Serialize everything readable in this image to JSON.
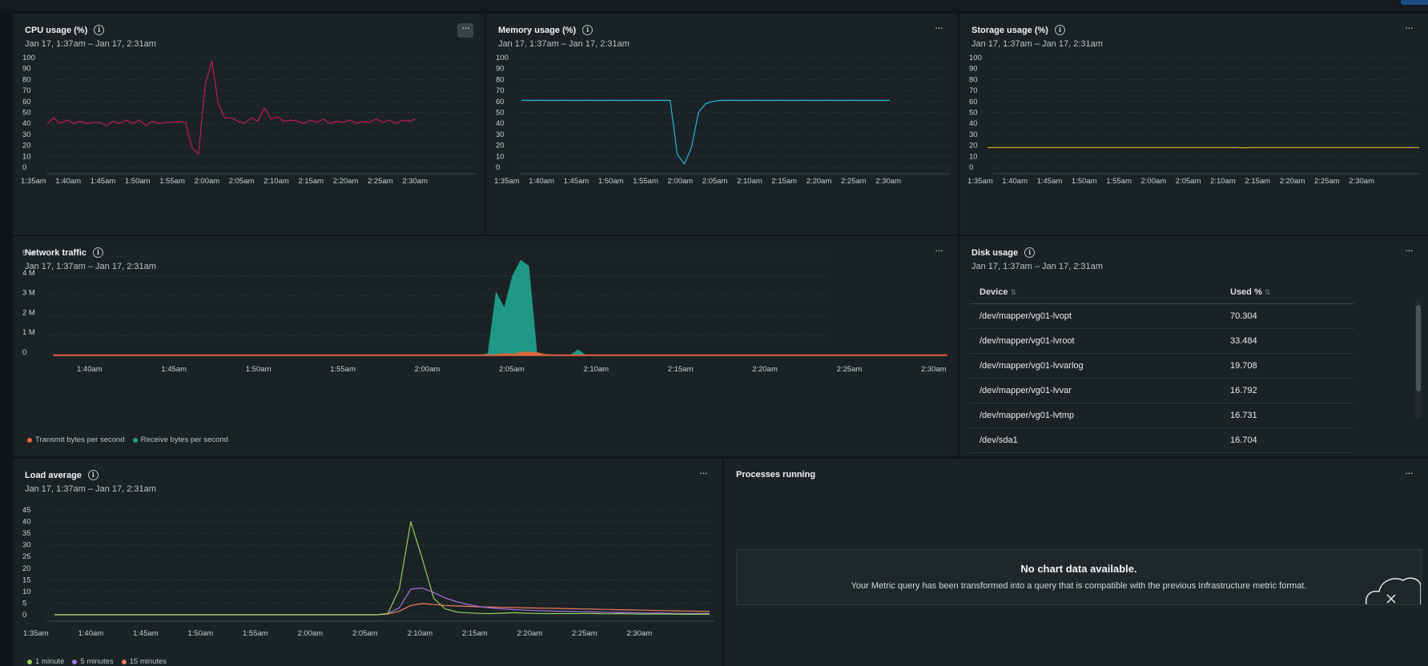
{
  "time_range": "Jan 17, 1:37am – Jan 17, 2:31am",
  "menu_label": "···",
  "colors": {
    "cpu": "#c2185b",
    "memory": "#1fb8d1",
    "storage": "#e0b421",
    "transmit": "#e8643c",
    "receive": "#20a08a",
    "load_1m": "#8fd05c",
    "load_5m": "#a673e0",
    "load_15m": "#ee7e5e"
  },
  "cpu_panel": {
    "title": "CPU usage (%)"
  },
  "memory_panel": {
    "title": "Memory usage (%)"
  },
  "storage_panel": {
    "title": "Storage usage (%)"
  },
  "network_panel": {
    "title": "Network traffic"
  },
  "disk_panel": {
    "title": "Disk usage",
    "col_device": "Device",
    "col_used": "Used %",
    "rows": [
      {
        "device": "/dev/mapper/vg01-lvopt",
        "used": "70.304"
      },
      {
        "device": "/dev/mapper/vg01-lvroot",
        "used": "33.484"
      },
      {
        "device": "/dev/mapper/vg01-lvvarlog",
        "used": "19.708"
      },
      {
        "device": "/dev/mapper/vg01-lvvar",
        "used": "16.792"
      },
      {
        "device": "/dev/mapper/vg01-lvtmp",
        "used": "16.731"
      },
      {
        "device": "/dev/sda1",
        "used": "16.704"
      }
    ]
  },
  "load_panel": {
    "title": "Load average"
  },
  "processes_panel": {
    "title": "Processes running",
    "no_data_title": "No chart data available.",
    "no_data_message": "Your Metric query has been transformed into a query that is compatible with the previous Infrastructure metric format."
  },
  "chart_data": [
    {
      "id": "cpu",
      "type": "line",
      "title": "CPU usage (%)",
      "ylim": [
        0,
        100
      ],
      "yticks": [
        "100",
        "90",
        "80",
        "70",
        "60",
        "50",
        "40",
        "30",
        "20",
        "10",
        "0"
      ],
      "xticks": [
        "1:35am",
        "1:40am",
        "1:45am",
        "1:50am",
        "1:55am",
        "2:00am",
        "2:05am",
        "2:10am",
        "2:15am",
        "2:20am",
        "2:25am",
        "2:30am"
      ],
      "series": [
        {
          "values": [
            40,
            45,
            40,
            43,
            40,
            42,
            40,
            41,
            41,
            38,
            42,
            40,
            43,
            40,
            43,
            38,
            42,
            40,
            41,
            41,
            42,
            41,
            18,
            12,
            75,
            97,
            58,
            45,
            45,
            42,
            40,
            45,
            42,
            54,
            44,
            46,
            42,
            43,
            42,
            40,
            43,
            41,
            44,
            40,
            42,
            41,
            43,
            40,
            42,
            41,
            44,
            41,
            43,
            40,
            43,
            42,
            44
          ]
        }
      ]
    },
    {
      "id": "memory",
      "type": "line",
      "title": "Memory usage (%)",
      "ylim": [
        0,
        100
      ],
      "yticks": [
        "100",
        "90",
        "80",
        "70",
        "60",
        "50",
        "40",
        "30",
        "20",
        "10",
        "0"
      ],
      "xticks": [
        "1:35am",
        "1:40am",
        "1:45am",
        "1:50am",
        "1:55am",
        "2:00am",
        "2:05am",
        "2:10am",
        "2:15am",
        "2:20am",
        "2:25am",
        "2:30am"
      ],
      "series": [
        {
          "values": [
            61,
            61,
            61,
            61,
            61,
            61,
            61,
            61,
            61,
            61,
            61,
            61,
            61,
            61,
            61,
            61,
            61,
            61,
            61,
            61,
            61,
            61,
            12,
            3,
            18,
            50,
            58,
            60,
            61,
            61,
            61,
            61,
            61,
            61,
            61,
            61,
            61,
            61,
            61,
            61,
            61,
            61,
            61,
            61,
            61,
            61,
            61,
            61,
            61,
            61,
            61,
            61,
            61
          ]
        }
      ]
    },
    {
      "id": "storage",
      "type": "line",
      "title": "Storage usage (%)",
      "ylim": [
        0,
        100
      ],
      "yticks": [
        "100",
        "90",
        "80",
        "70",
        "60",
        "50",
        "40",
        "30",
        "20",
        "10",
        "0"
      ],
      "xticks": [
        "1:35am",
        "1:40am",
        "1:45am",
        "1:50am",
        "1:55am",
        "2:00am",
        "2:05am",
        "2:10am",
        "2:15am",
        "2:20am",
        "2:25am",
        "2:30am"
      ],
      "series": [
        {
          "values": [
            18,
            18,
            18,
            18,
            18,
            18,
            18,
            18,
            18,
            18,
            18,
            18,
            18,
            18,
            18,
            18,
            18,
            18,
            18,
            18,
            18,
            18,
            18,
            18,
            18,
            18,
            18,
            18,
            18,
            18,
            18,
            17.8,
            18,
            18,
            18,
            18,
            18,
            18,
            18,
            18,
            18,
            18,
            18,
            18,
            18,
            18,
            18,
            18,
            18,
            18,
            18,
            18,
            18
          ]
        }
      ]
    },
    {
      "id": "network",
      "type": "area",
      "title": "Network traffic",
      "ylim": [
        0,
        5
      ],
      "yticks": [
        "5 M",
        "4 M",
        "3 M",
        "2 M",
        "1 M",
        "0"
      ],
      "xticks": [
        "1:40am",
        "1:45am",
        "1:50am",
        "1:55am",
        "2:00am",
        "2:05am",
        "2:10am",
        "2:15am",
        "2:20am",
        "2:25am",
        "2:30am"
      ],
      "legend": [
        "Transmit bytes per second",
        "Receive bytes per second"
      ],
      "series": [
        {
          "name": "Receive bytes per second",
          "values": [
            0,
            0,
            0,
            0,
            0,
            0,
            0,
            0,
            0,
            0,
            0,
            0,
            0,
            0,
            0,
            0,
            0,
            0,
            0,
            0,
            0,
            0,
            0,
            0,
            0,
            0,
            0,
            0,
            0,
            0,
            0,
            0,
            0,
            0,
            0,
            0,
            0,
            0,
            0,
            0,
            0,
            0,
            0,
            0,
            0,
            0,
            0,
            0,
            0,
            0,
            0,
            0,
            0,
            0.1,
            3.2,
            2.4,
            4.0,
            4.8,
            4.5,
            0.1,
            0,
            0,
            0,
            0,
            0.3,
            0,
            0,
            0,
            0,
            0,
            0,
            0,
            0,
            0,
            0,
            0,
            0,
            0,
            0,
            0,
            0,
            0,
            0,
            0,
            0,
            0,
            0,
            0,
            0,
            0,
            0,
            0,
            0,
            0,
            0,
            0,
            0,
            0,
            0,
            0,
            0,
            0,
            0,
            0,
            0,
            0,
            0,
            0,
            0,
            0
          ]
        },
        {
          "name": "Transmit bytes per second",
          "values": [
            0.02,
            0.02,
            0.02,
            0.02,
            0.02,
            0.02,
            0.02,
            0.02,
            0.02,
            0.02,
            0.02,
            0.02,
            0.02,
            0.02,
            0.02,
            0.02,
            0.02,
            0.02,
            0.02,
            0.02,
            0.02,
            0.02,
            0.02,
            0.02,
            0.02,
            0.02,
            0.02,
            0.02,
            0.02,
            0.02,
            0.02,
            0.02,
            0.02,
            0.02,
            0.02,
            0.02,
            0.02,
            0.02,
            0.02,
            0.02,
            0.02,
            0.02,
            0.02,
            0.02,
            0.02,
            0.02,
            0.02,
            0.02,
            0.02,
            0.02,
            0.02,
            0.02,
            0.02,
            0.03,
            0.08,
            0.05,
            0.15,
            0.15,
            0.12,
            0.03,
            0.02,
            0.02,
            0.02,
            0.02,
            0.02,
            0.02,
            0.02,
            0.02,
            0.02,
            0.02,
            0.02,
            0.02,
            0.02,
            0.02,
            0.02,
            0.02,
            0.02,
            0.02,
            0.02,
            0.02,
            0.02,
            0.02,
            0.02,
            0.02,
            0.02,
            0.02,
            0.02,
            0.02,
            0.02,
            0.02,
            0.02,
            0.02,
            0.02,
            0.02,
            0.02,
            0.02,
            0.02,
            0.02,
            0.02,
            0.02,
            0.02,
            0.02,
            0.02,
            0.02,
            0.02,
            0.02,
            0.02,
            0.02
          ]
        }
      ]
    },
    {
      "id": "load",
      "type": "line",
      "title": "Load average",
      "ylim": [
        0,
        45
      ],
      "yticks": [
        "45",
        "40",
        "35",
        "30",
        "25",
        "20",
        "15",
        "10",
        "5",
        "0"
      ],
      "xticks": [
        "1:35am",
        "1:40am",
        "1:45am",
        "1:50am",
        "1:55am",
        "2:00am",
        "2:05am",
        "2:10am",
        "2:15am",
        "2:20am",
        "2:25am",
        "2:30am"
      ],
      "legend": [
        "1 minute",
        "5 minutes",
        "15 minutes"
      ],
      "series": [
        {
          "name": "1 minute",
          "values": [
            0,
            0,
            0,
            0,
            0,
            0,
            0,
            0,
            0,
            0,
            0,
            0,
            0,
            0,
            0,
            0,
            0,
            0,
            0,
            0,
            0,
            0,
            0,
            0,
            0,
            0,
            0,
            0,
            0,
            0.5,
            11,
            40,
            24,
            7,
            2.5,
            1.2,
            0.8,
            0.6,
            0.5,
            0.7,
            0.9,
            0.7,
            0.6,
            0.5,
            0.5,
            0.5,
            0.6,
            0.5,
            0.4,
            0.5,
            0.4,
            0.3,
            0.3,
            0.3,
            0.3,
            0.2,
            0.2,
            0.2
          ]
        },
        {
          "name": "5 minutes",
          "values": [
            0,
            0,
            0,
            0,
            0,
            0,
            0,
            0,
            0,
            0,
            0,
            0,
            0,
            0,
            0,
            0,
            0,
            0,
            0,
            0,
            0,
            0,
            0,
            0,
            0,
            0,
            0,
            0,
            0,
            0.5,
            3,
            11,
            11.5,
            9.5,
            7.2,
            5.6,
            4.4,
            3.5,
            2.9,
            2.5,
            2.2,
            2,
            1.8,
            1.6,
            1.5,
            1.4,
            1.3,
            1.2,
            1.1,
            1,
            0.9,
            0.8,
            0.8,
            0.7,
            0.6,
            0.6,
            0.5,
            0.5
          ]
        },
        {
          "name": "15 minutes",
          "values": [
            0,
            0,
            0,
            0,
            0,
            0,
            0,
            0,
            0,
            0,
            0,
            0,
            0,
            0,
            0,
            0,
            0,
            0,
            0,
            0,
            0,
            0,
            0,
            0,
            0,
            0,
            0,
            0,
            0,
            0.3,
            1.5,
            4,
            4.8,
            4.4,
            4.0,
            3.8,
            3.6,
            3.4,
            3.3,
            3.2,
            3.1,
            3.0,
            2.9,
            2.8,
            2.7,
            2.6,
            2.5,
            2.4,
            2.3,
            2.2,
            2.1,
            2.0,
            1.9,
            1.8,
            1.7,
            1.6,
            1.5,
            1.4
          ]
        }
      ]
    }
  ]
}
